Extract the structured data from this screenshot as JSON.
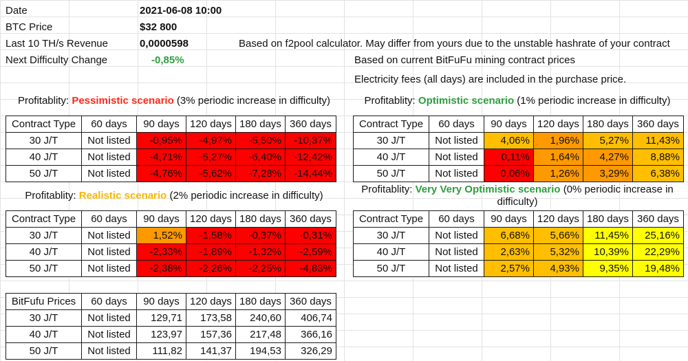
{
  "info": {
    "date_label": "Date",
    "date_value": "2021-06-08 10:00",
    "btc_label": "BTC Price",
    "btc_value": "$32 800",
    "revenue_label": "Last 10 TH/s Revenue",
    "revenue_value": "0,0000598",
    "revenue_note": "Based on f2pool calculator. May differ from yours due to the unstable hashrate of your contract",
    "difficulty_label": "Next Difficulty Change",
    "difficulty_value": "-0,85%",
    "prices_note": "Based on current BitFuFu mining contract prices",
    "fees_note": "Electricity fees (all days) are included in the purchase price."
  },
  "colors": {
    "red": "#ff0000",
    "orange": "#ff9900",
    "amber": "#ffbf00",
    "yellow": "#ffff00",
    "green_text": "#2e9e3e",
    "scenario_red": "#ff2a1a",
    "scenario_yellow": "#f6b800"
  },
  "headers": [
    "Contract Type",
    "60 days",
    "90 days",
    "120 days",
    "180 days",
    "360 days"
  ],
  "pessimistic": {
    "title_prefix": "Profitablity: ",
    "title_scenario": "Pessimistic scenario",
    "title_suffix": " (3% periodic increase in difficulty)",
    "rows": [
      {
        "type": "30 J/T",
        "cells": [
          "Not listed",
          "-0,95%",
          "-4,97%",
          "-5,50%",
          "-10,37%"
        ],
        "colors": [
          "",
          "red",
          "red",
          "red",
          "red"
        ]
      },
      {
        "type": "40 J/T",
        "cells": [
          "Not listed",
          "-4,71%",
          "-5,27%",
          "-6,40%",
          "-12,42%"
        ],
        "colors": [
          "",
          "red",
          "red",
          "red",
          "red"
        ]
      },
      {
        "type": "50 J/T",
        "cells": [
          "Not listed",
          "-4,76%",
          "-5,62%",
          "-7,28%",
          "-14,44%"
        ],
        "colors": [
          "",
          "red",
          "red",
          "red",
          "red"
        ]
      }
    ]
  },
  "optimistic": {
    "title_prefix": "Profitablity: ",
    "title_scenario": "Optimistic scenario",
    "title_suffix": " (1% periodic increase in difficulty)",
    "rows": [
      {
        "type": "30 J/T",
        "cells": [
          "Not listed",
          "4,06%",
          "1,96%",
          "5,27%",
          "11,43%"
        ],
        "colors": [
          "",
          "amber",
          "orange",
          "amber",
          "amber"
        ]
      },
      {
        "type": "40 J/T",
        "cells": [
          "Not listed",
          "0,11%",
          "1,64%",
          "4,27%",
          "8,88%"
        ],
        "colors": [
          "",
          "red",
          "orange",
          "orange",
          "amber"
        ]
      },
      {
        "type": "50 J/T",
        "cells": [
          "Not listed",
          "0,06%",
          "1,26%",
          "3,29%",
          "6,38%"
        ],
        "colors": [
          "",
          "red",
          "orange",
          "orange",
          "amber"
        ]
      }
    ]
  },
  "realistic": {
    "title_prefix": "Profitablity: ",
    "title_scenario": "Realistic scenario",
    "title_suffix": " (2% periodic increase in difficulty)",
    "rows": [
      {
        "type": "30 J/T",
        "cells": [
          "Not listed",
          "1,52%",
          "-1,58%",
          "-0,37%",
          "-0,31%"
        ],
        "colors": [
          "",
          "orange",
          "red",
          "red",
          "red"
        ]
      },
      {
        "type": "40 J/T",
        "cells": [
          "Not listed",
          "-2,33%",
          "-1,89%",
          "-1,32%",
          "-2,59%"
        ],
        "colors": [
          "",
          "red",
          "red",
          "red",
          "red"
        ]
      },
      {
        "type": "50 J/T",
        "cells": [
          "Not listed",
          "-2,38%",
          "-2,26%",
          "-2,25%",
          "-4,83%"
        ],
        "colors": [
          "",
          "red",
          "red",
          "red",
          "red"
        ]
      }
    ]
  },
  "very_optimistic": {
    "title_prefix": "Profitablity: ",
    "title_scenario": "Very Very Optimistic scenario",
    "title_suffix": " (0% periodic increase in",
    "title_line2": "difficulty)",
    "rows": [
      {
        "type": "30 J/T",
        "cells": [
          "Not listed",
          "6,68%",
          "5,66%",
          "11,45%",
          "25,16%"
        ],
        "colors": [
          "",
          "amber",
          "amber",
          "yellow",
          "yellow"
        ]
      },
      {
        "type": "40 J/T",
        "cells": [
          "Not listed",
          "2,63%",
          "5,32%",
          "10,39%",
          "22,29%"
        ],
        "colors": [
          "",
          "amber",
          "amber",
          "yellow",
          "yellow"
        ]
      },
      {
        "type": "50 J/T",
        "cells": [
          "Not listed",
          "2,57%",
          "4,93%",
          "9,35%",
          "19,48%"
        ],
        "colors": [
          "",
          "amber",
          "amber",
          "yellow",
          "yellow"
        ]
      }
    ]
  },
  "prices": {
    "headers": [
      "BitFufu Prices",
      "60 days",
      "90 days",
      "120 days",
      "180 days",
      "360 days"
    ],
    "rows": [
      {
        "type": "30 J/T",
        "cells": [
          "Not listed",
          "129,71",
          "173,58",
          "240,60",
          "406,74"
        ]
      },
      {
        "type": "40 J/T",
        "cells": [
          "Not listed",
          "123,97",
          "157,36",
          "217,48",
          "366,16"
        ]
      },
      {
        "type": "50 J/T",
        "cells": [
          "Not listed",
          "111,82",
          "141,37",
          "194,53",
          "326,29"
        ]
      }
    ]
  }
}
